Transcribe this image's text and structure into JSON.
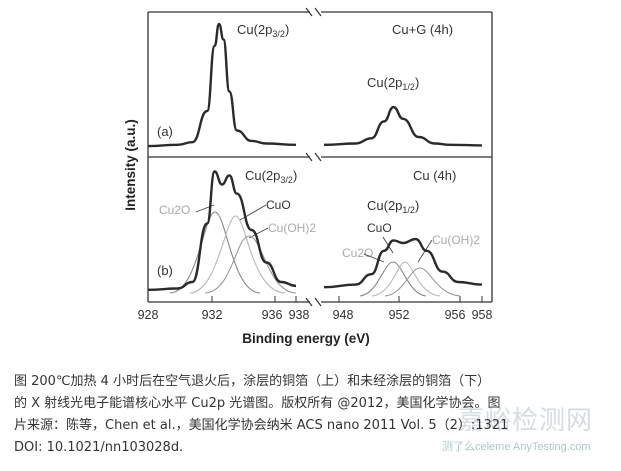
{
  "chart_data": [
    {
      "type": "line",
      "panel": "(a)",
      "sample": "Cu+G  (4h)",
      "peak_labels": [
        {
          "base": "Cu(2p",
          "sub": "3/2",
          "tail": ")"
        },
        {
          "base": "Cu(2p",
          "sub": "1/2",
          "tail": ")"
        }
      ],
      "series": [
        {
          "values": [
            [
              928,
              0.03
            ],
            [
              930,
              0.04
            ],
            [
              931,
              0.06
            ],
            [
              932,
              0.3
            ],
            [
              932.5,
              0.8
            ],
            [
              932.8,
              0.97
            ],
            [
              933.1,
              0.85
            ],
            [
              933.5,
              0.45
            ],
            [
              934,
              0.15
            ],
            [
              935,
              0.07
            ],
            [
              936,
              0.05
            ],
            [
              938,
              0.04
            ],
            [
              948,
              0.04
            ],
            [
              950,
              0.05
            ],
            [
              951,
              0.09
            ],
            [
              951.8,
              0.22
            ],
            [
              952.4,
              0.33
            ],
            [
              953,
              0.24
            ],
            [
              954,
              0.1
            ],
            [
              955,
              0.05
            ],
            [
              956,
              0.04
            ],
            [
              958,
              0.035
            ]
          ]
        }
      ]
    },
    {
      "type": "line",
      "panel": "(b)",
      "sample": "Cu  (4h)",
      "peak_labels": [
        {
          "base": "Cu(2p",
          "sub": "3/2",
          "tail": ")"
        },
        {
          "base": "Cu(2p",
          "sub": "1/2",
          "tail": ")"
        }
      ],
      "component_labels": [
        "Cu2O",
        "CuO",
        "Cu(OH)2"
      ],
      "series": [
        {
          "values": [
            [
              928,
              0.04
            ],
            [
              930,
              0.05
            ],
            [
              931,
              0.1
            ],
            [
              932,
              0.55
            ],
            [
              932.5,
              0.95
            ],
            [
              933,
              0.85
            ],
            [
              933.5,
              0.92
            ],
            [
              934,
              0.78
            ],
            [
              935,
              0.5
            ],
            [
              936,
              0.25
            ],
            [
              937,
              0.1
            ],
            [
              938,
              0.07
            ],
            [
              948,
              0.06
            ],
            [
              950,
              0.08
            ],
            [
              951,
              0.16
            ],
            [
              951.8,
              0.34
            ],
            [
              952.4,
              0.42
            ],
            [
              953,
              0.4
            ],
            [
              953.8,
              0.43
            ],
            [
              954.5,
              0.34
            ],
            [
              955.5,
              0.18
            ],
            [
              956.5,
              0.1
            ],
            [
              958,
              0.08
            ]
          ]
        }
      ]
    }
  ],
  "axes": {
    "ylabel": "Intensity (a.u.)",
    "xlabel": "Binding energy (eV)",
    "x_ticks": [
      "928",
      "932",
      "936",
      "938",
      "948",
      "952",
      "956",
      "958"
    ],
    "broken_axis": true
  },
  "caption": {
    "line1": "图        200℃加热 4 小时后在空气退火后，涂层的铜箔（上）和未经涂层的铜箔（下）",
    "line2": "的 X 射线光电子能谱核心水平 Cu2p 光谱图。版权所有 @2012，美国化学协会。图",
    "line3": "片来源：陈等，Chen et al.，美国化学协会纳米 ACS nano 2011 Vol. 5（2）:1321",
    "line4": "DOI: 10.1021/nn103028d."
  },
  "watermark": {
    "main": "嘉峪检测网",
    "sub": "测了么celeme",
    "url": "AnyTesting.com"
  }
}
